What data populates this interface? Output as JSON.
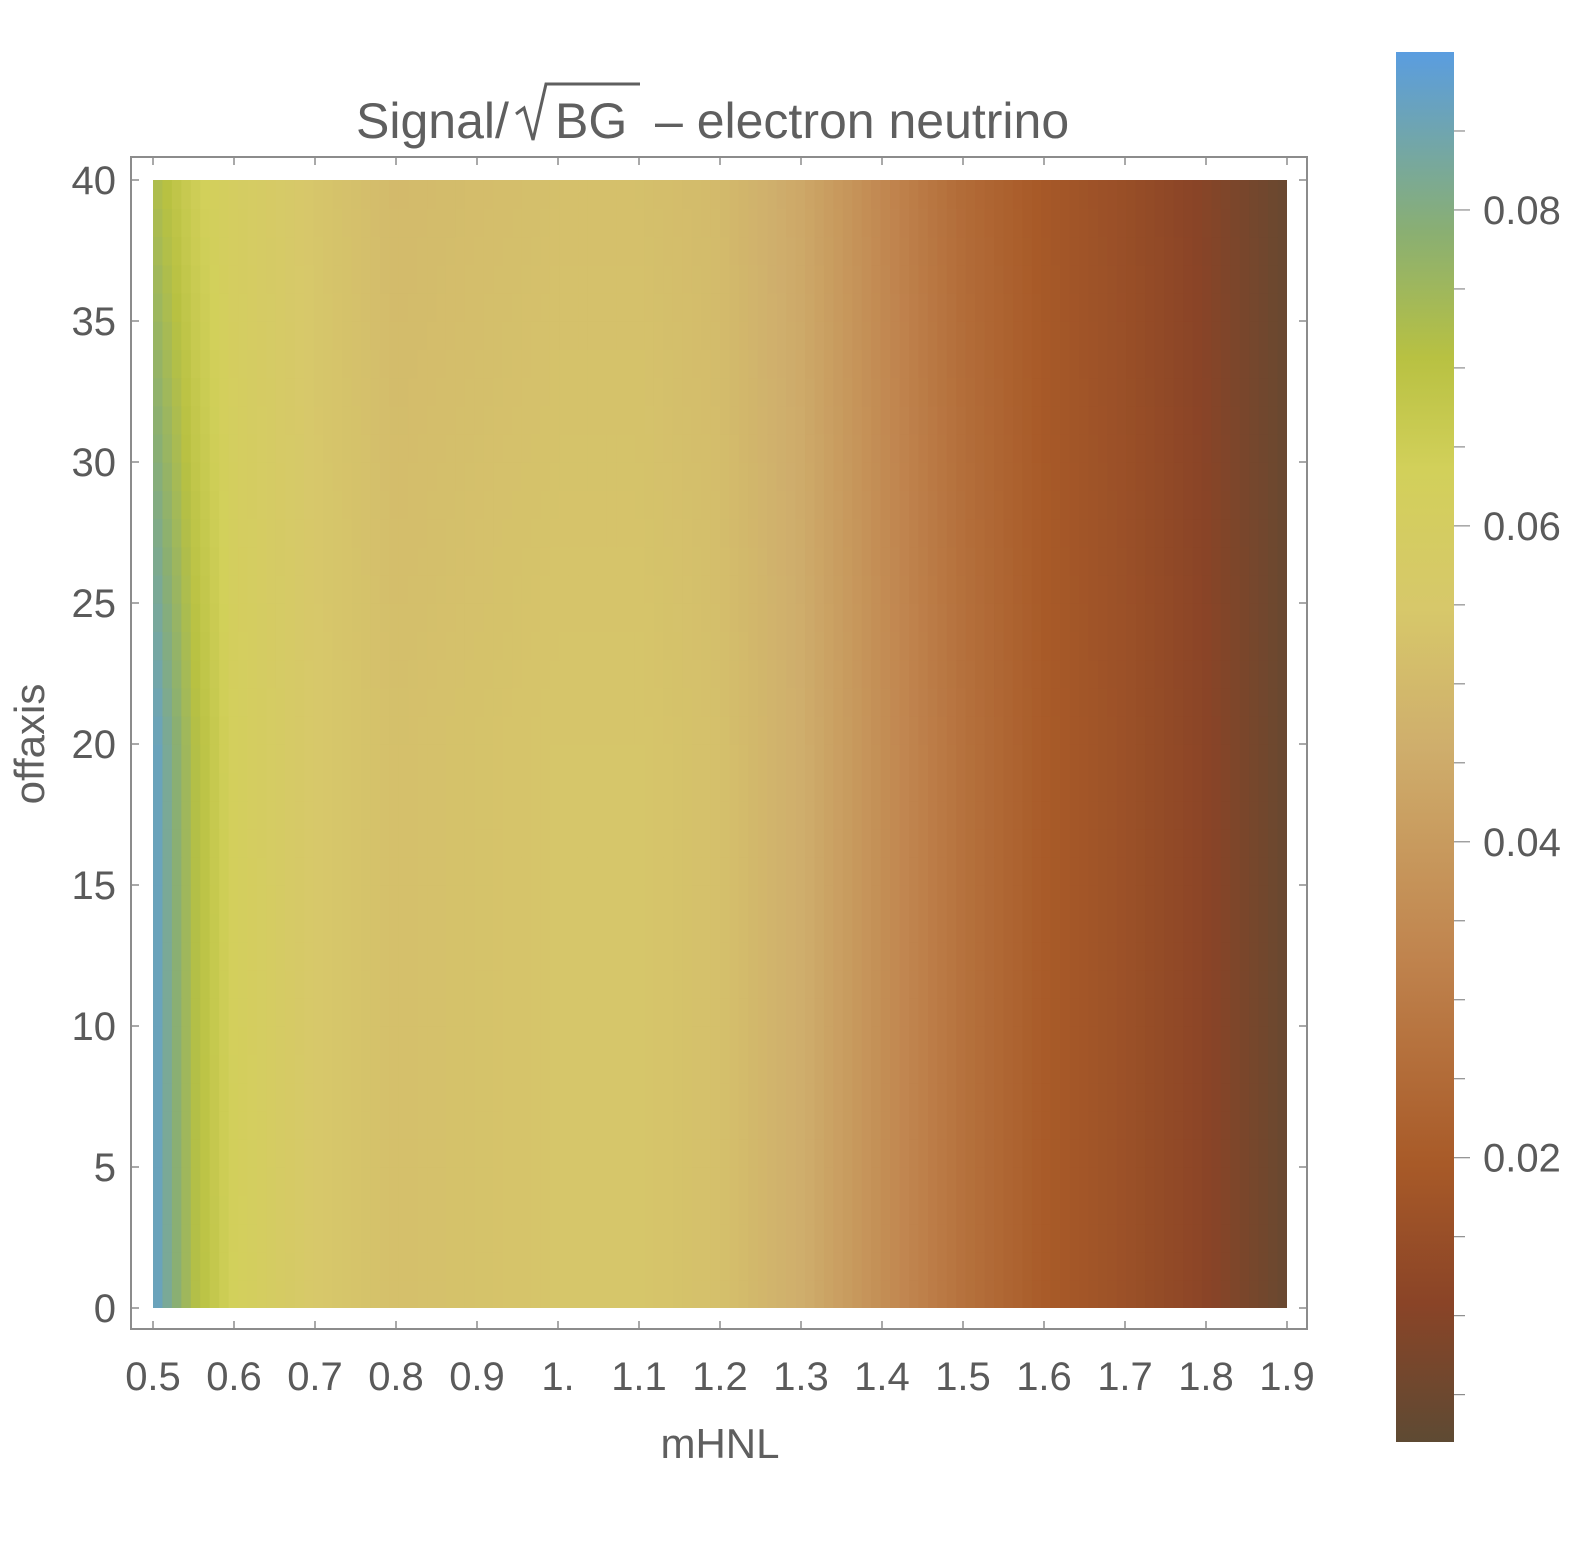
{
  "title": {
    "prefix": "Signal/",
    "radicand": "BG",
    "suffix": "– electron neutrino"
  },
  "chart_data": {
    "type": "heatmap",
    "title": "Signal/√BG – electron neutrino",
    "xlabel": "mHNL",
    "ylabel": "offaxis",
    "xlim": [
      0.5,
      1.9
    ],
    "ylim": [
      0,
      40
    ],
    "x_ticks": [
      0.5,
      0.6,
      0.7,
      0.8,
      0.9,
      1.0,
      1.1,
      1.2,
      1.3,
      1.4,
      1.5,
      1.6,
      1.7,
      1.8,
      1.9
    ],
    "x_tick_labels": [
      "0.5",
      "0.6",
      "0.7",
      "0.8",
      "0.9",
      "1.",
      "1.1",
      "1.2",
      "1.3",
      "1.4",
      "1.5",
      "1.6",
      "1.7",
      "1.8",
      "1.9"
    ],
    "y_ticks": [
      0,
      5,
      10,
      15,
      20,
      25,
      30,
      35,
      40
    ],
    "y_tick_labels": [
      "0",
      "5",
      "10",
      "15",
      "20",
      "25",
      "30",
      "35",
      "40"
    ],
    "x": [
      0.5,
      0.55,
      0.6,
      0.7,
      0.8,
      0.9,
      1.0,
      1.1,
      1.2,
      1.3,
      1.4,
      1.5,
      1.6,
      1.7,
      1.8,
      1.9
    ],
    "y": [
      0,
      20,
      40
    ],
    "z": [
      [
        0.088,
        0.072,
        0.063,
        0.055,
        0.052,
        0.053,
        0.054,
        0.054,
        0.052,
        0.046,
        0.036,
        0.027,
        0.02,
        0.016,
        0.011,
        0.004
      ],
      [
        0.088,
        0.072,
        0.062,
        0.055,
        0.052,
        0.053,
        0.054,
        0.054,
        0.052,
        0.046,
        0.036,
        0.027,
        0.02,
        0.016,
        0.011,
        0.004
      ],
      [
        0.073,
        0.065,
        0.06,
        0.054,
        0.05,
        0.051,
        0.052,
        0.052,
        0.05,
        0.044,
        0.034,
        0.025,
        0.019,
        0.015,
        0.01,
        0.004
      ]
    ],
    "colorbar": {
      "range": [
        0.002,
        0.09
      ],
      "ticks": [
        0.02,
        0.04,
        0.06,
        0.08
      ],
      "tick_labels": [
        "0.02",
        "0.04",
        "0.06",
        "0.08"
      ],
      "minor_ticks": [
        0.005,
        0.01,
        0.015,
        0.025,
        0.03,
        0.035,
        0.045,
        0.05,
        0.055,
        0.065,
        0.07,
        0.075,
        0.085
      ]
    },
    "colorscale": [
      [
        0.0,
        "#5e4a33"
      ],
      [
        0.1,
        "#8a4427"
      ],
      [
        0.2,
        "#a85a28"
      ],
      [
        0.35,
        "#c0844e"
      ],
      [
        0.5,
        "#cfae6c"
      ],
      [
        0.6,
        "#d7c86a"
      ],
      [
        0.7,
        "#d2d05a"
      ],
      [
        0.78,
        "#b8c142"
      ],
      [
        0.87,
        "#8aaf72"
      ],
      [
        1.0,
        "#5a9de0"
      ]
    ]
  }
}
